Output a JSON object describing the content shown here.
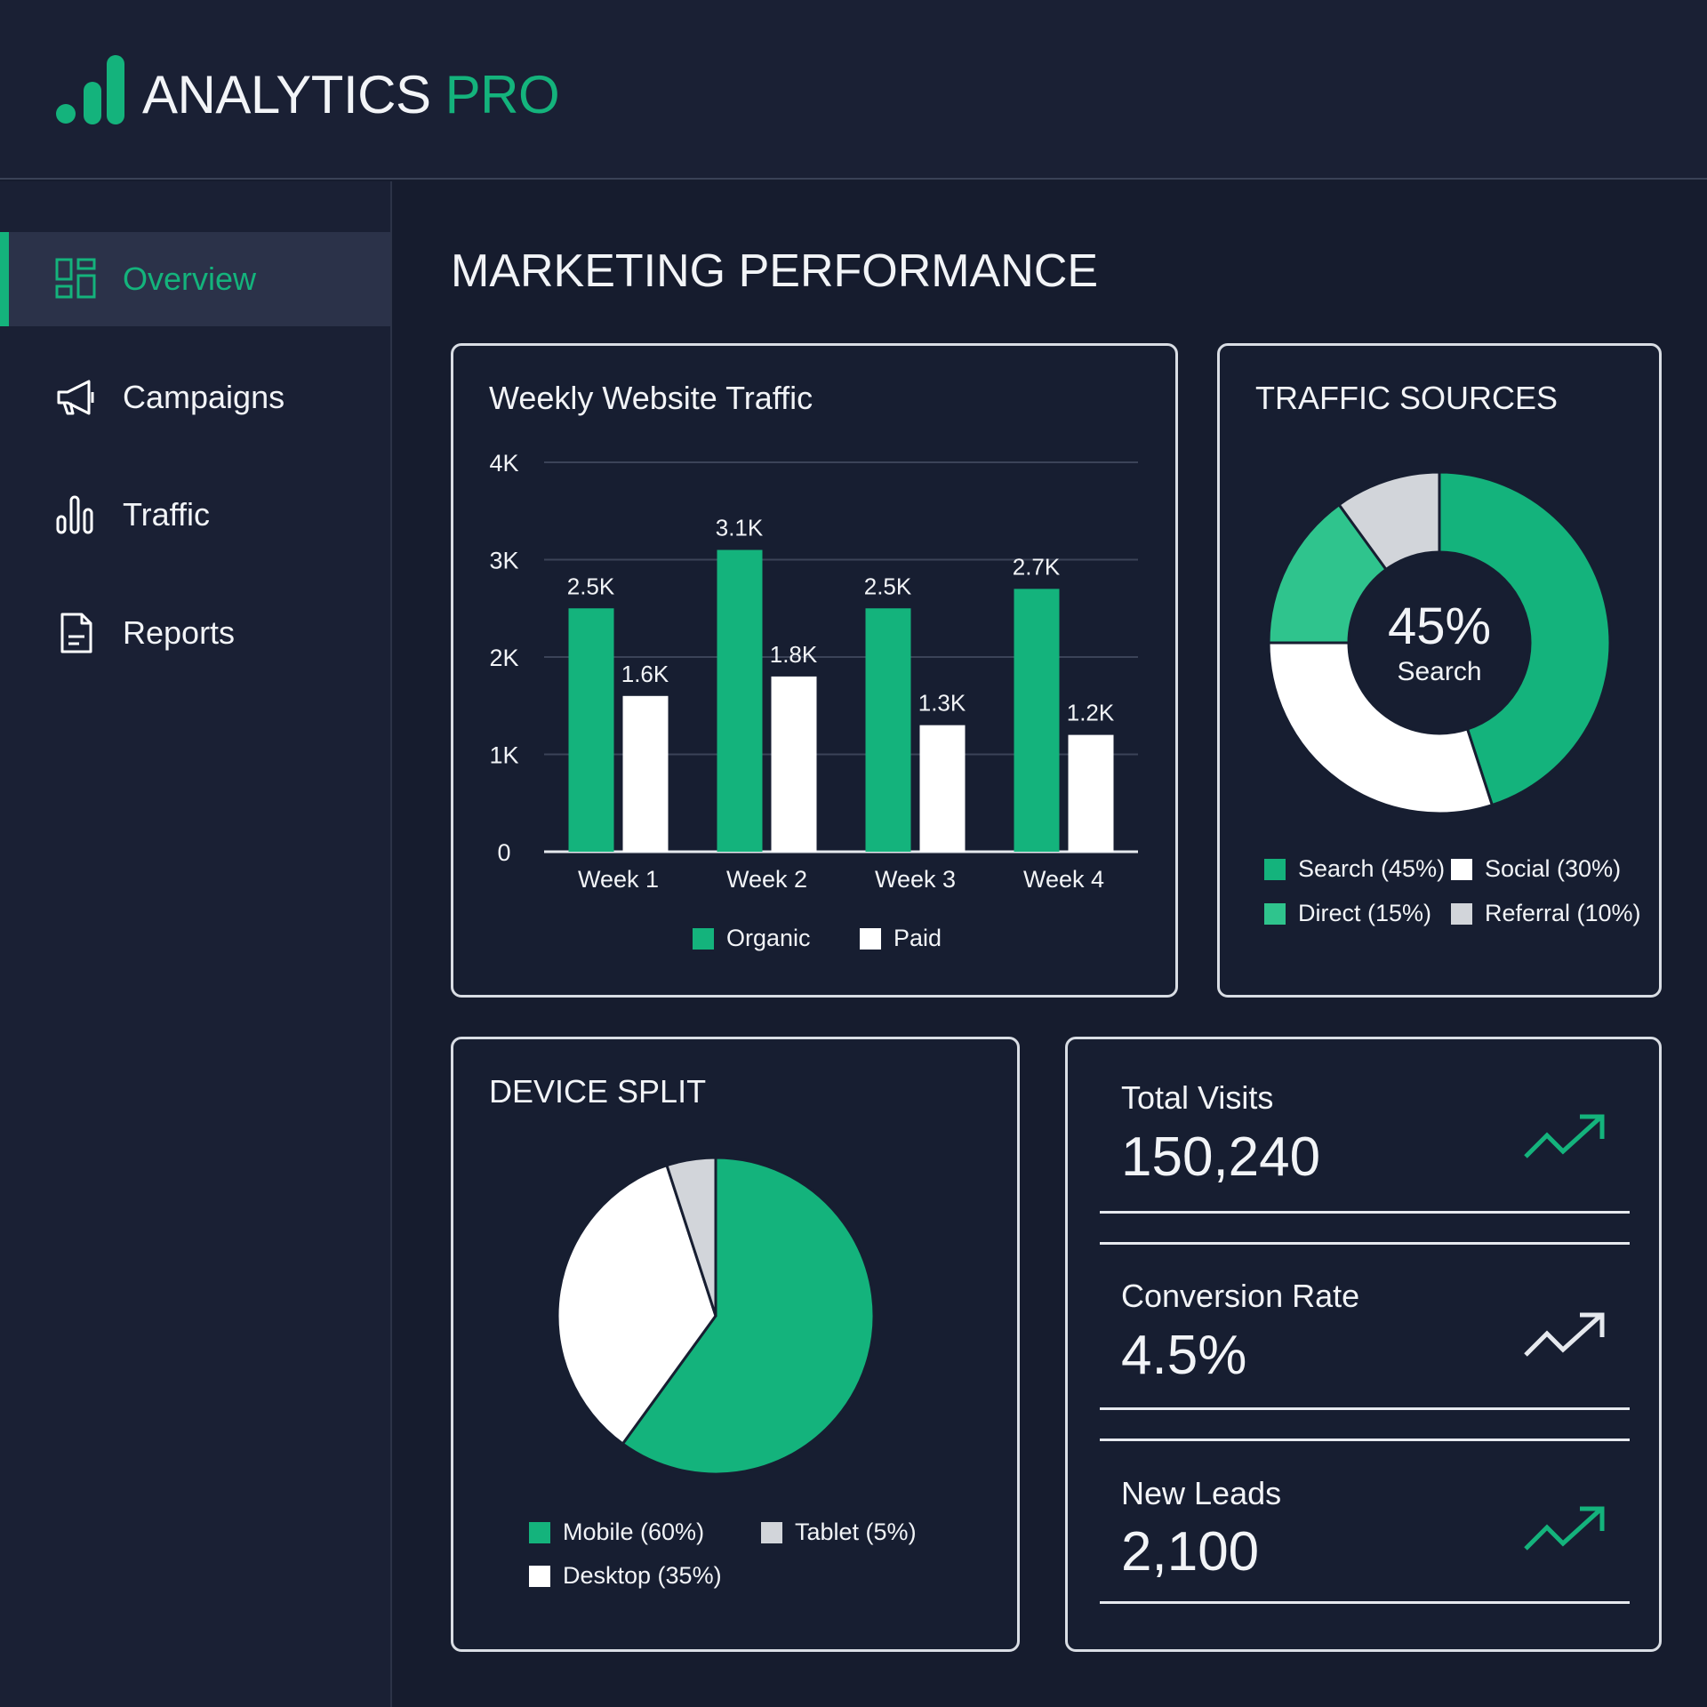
{
  "app": {
    "brand_main": "ANALYTICS",
    "brand_accent": "PRO"
  },
  "sidebar": {
    "items": [
      {
        "label": "Overview",
        "icon": "dashboard-icon",
        "active": true
      },
      {
        "label": "Campaigns",
        "icon": "megaphone-icon"
      },
      {
        "label": "Traffic",
        "icon": "bar-chart-icon"
      },
      {
        "label": "Reports",
        "icon": "document-icon"
      }
    ]
  },
  "page": {
    "title": "MARKETING PERFORMANCE"
  },
  "colors": {
    "green": "#14b37c",
    "light_green": "#2fc48d",
    "white": "#ffffff",
    "gray": "#d2d5da",
    "background": "#161c2e"
  },
  "chart_data": [
    {
      "type": "bar",
      "title": "Weekly Website Traffic",
      "categories": [
        "Week 1",
        "Week 2",
        "Week 3",
        "Week 4"
      ],
      "yticks": [
        "0",
        "1K",
        "2K",
        "3K",
        "4K"
      ],
      "ylim": [
        0,
        4000
      ],
      "grid": true,
      "legend": "bottom",
      "series": [
        {
          "name": "Organic",
          "values": [
            2500,
            3100,
            2500,
            2700
          ],
          "labels": [
            "2.5K",
            "3.1K",
            "2.5K",
            "2.7K"
          ]
        },
        {
          "name": "Paid",
          "values": [
            1600,
            1800,
            1300,
            1200
          ],
          "labels": [
            "1.6K",
            "1.8K",
            "1.3K",
            "1.2K"
          ]
        }
      ]
    },
    {
      "type": "pie",
      "variant": "donut",
      "title": "TRAFFIC SOURCES",
      "center_value": "45%",
      "center_label": "Search",
      "legend": "bottom",
      "slices": [
        {
          "name": "Search",
          "value": 45,
          "label": "Search (45%)"
        },
        {
          "name": "Social",
          "value": 30,
          "label": "Social (30%)"
        },
        {
          "name": "Direct",
          "value": 15,
          "label": "Direct (15%)"
        },
        {
          "name": "Referral",
          "value": 10,
          "label": "Referral (10%)"
        }
      ]
    },
    {
      "type": "pie",
      "title": "DEVICE SPLIT",
      "legend": "bottom",
      "slices": [
        {
          "name": "Mobile",
          "value": 60,
          "label": "Mobile (60%)"
        },
        {
          "name": "Desktop",
          "value": 35,
          "label": "Desktop (35%)"
        },
        {
          "name": "Tablet",
          "value": 5,
          "label": "Tablet (5%)"
        }
      ]
    }
  ],
  "kpis": [
    {
      "label": "Total Visits",
      "value": "150,240",
      "trend": "up",
      "icon": "trend-up-icon"
    },
    {
      "label": "Conversion Rate",
      "value": "4.5%",
      "trend": "up",
      "icon": "trend-up-icon"
    },
    {
      "label": "New Leads",
      "value": "2,100",
      "trend": "up",
      "icon": "trend-up-icon"
    }
  ]
}
